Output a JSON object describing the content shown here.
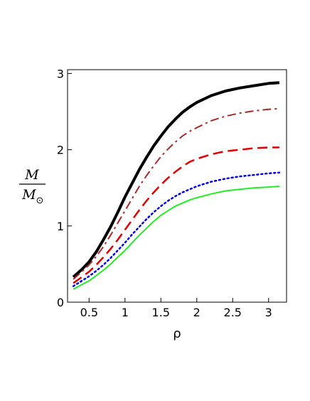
{
  "chart_data": {
    "type": "line",
    "xlabel": "ρ",
    "ylabel": {
      "numerator": "M",
      "denominator": "M",
      "subscript": "⊙"
    },
    "xlim": [
      0.2,
      3.25
    ],
    "ylim": [
      0,
      3.05
    ],
    "xticks": [
      0.5,
      1,
      1.5,
      2,
      2.5,
      3
    ],
    "xtick_labels": [
      "0.5",
      "1",
      "1.5",
      "2",
      "2.5",
      "3"
    ],
    "yticks": [
      0,
      1,
      2,
      3
    ],
    "ytick_labels": [
      "0",
      "1",
      "2",
      "3"
    ],
    "grid": false,
    "legend": "none",
    "series": [
      {
        "color": "#000000",
        "style": "solid",
        "width": 4,
        "x": [
          0.28,
          0.4,
          0.5,
          0.6,
          0.7,
          0.8,
          0.9,
          1.0,
          1.1,
          1.2,
          1.3,
          1.4,
          1.5,
          1.6,
          1.7,
          1.8,
          1.9,
          2.0,
          2.2,
          2.4,
          2.6,
          2.8,
          3.0,
          3.15
        ],
        "y": [
          0.33,
          0.43,
          0.53,
          0.66,
          0.82,
          0.99,
          1.18,
          1.38,
          1.56,
          1.74,
          1.9,
          2.05,
          2.18,
          2.3,
          2.4,
          2.49,
          2.56,
          2.62,
          2.71,
          2.77,
          2.81,
          2.84,
          2.87,
          2.88
        ]
      },
      {
        "color": "#a52a2a",
        "style": "dashdot",
        "width": 2,
        "x": [
          0.28,
          0.4,
          0.5,
          0.6,
          0.7,
          0.8,
          0.9,
          1.0,
          1.1,
          1.2,
          1.3,
          1.4,
          1.5,
          1.6,
          1.7,
          1.8,
          1.9,
          2.0,
          2.2,
          2.4,
          2.6,
          2.8,
          3.0,
          3.15
        ],
        "y": [
          0.3,
          0.4,
          0.49,
          0.6,
          0.73,
          0.88,
          1.04,
          1.2,
          1.36,
          1.52,
          1.66,
          1.79,
          1.91,
          2.01,
          2.1,
          2.18,
          2.24,
          2.29,
          2.38,
          2.44,
          2.48,
          2.51,
          2.53,
          2.54
        ]
      },
      {
        "color": "#e00000",
        "style": "dash",
        "width": 2.5,
        "x": [
          0.28,
          0.4,
          0.5,
          0.6,
          0.7,
          0.8,
          0.9,
          1.0,
          1.1,
          1.2,
          1.3,
          1.4,
          1.5,
          1.6,
          1.7,
          1.8,
          1.9,
          2.0,
          2.2,
          2.4,
          2.6,
          2.8,
          3.0,
          3.15
        ],
        "y": [
          0.25,
          0.33,
          0.4,
          0.49,
          0.59,
          0.7,
          0.82,
          0.95,
          1.08,
          1.21,
          1.33,
          1.44,
          1.54,
          1.63,
          1.71,
          1.78,
          1.84,
          1.88,
          1.94,
          1.98,
          2.0,
          2.02,
          2.03,
          2.03
        ]
      },
      {
        "color": "#0000ee",
        "style": "dot",
        "width": 2.5,
        "x": [
          0.28,
          0.4,
          0.5,
          0.6,
          0.7,
          0.8,
          0.9,
          1.0,
          1.1,
          1.2,
          1.3,
          1.4,
          1.5,
          1.6,
          1.7,
          1.8,
          1.9,
          2.0,
          2.2,
          2.4,
          2.6,
          2.8,
          3.0,
          3.15
        ],
        "y": [
          0.21,
          0.28,
          0.34,
          0.41,
          0.49,
          0.58,
          0.68,
          0.78,
          0.89,
          0.99,
          1.09,
          1.18,
          1.26,
          1.33,
          1.39,
          1.44,
          1.48,
          1.52,
          1.58,
          1.62,
          1.65,
          1.67,
          1.69,
          1.7
        ]
      },
      {
        "color": "#22ee22",
        "style": "solid",
        "width": 2,
        "x": [
          0.28,
          0.4,
          0.5,
          0.6,
          0.7,
          0.8,
          0.9,
          1.0,
          1.1,
          1.2,
          1.3,
          1.4,
          1.5,
          1.6,
          1.7,
          1.8,
          1.9,
          2.0,
          2.2,
          2.4,
          2.6,
          2.8,
          3.0,
          3.15
        ],
        "y": [
          0.17,
          0.23,
          0.28,
          0.35,
          0.42,
          0.5,
          0.59,
          0.68,
          0.78,
          0.88,
          0.97,
          1.06,
          1.14,
          1.2,
          1.26,
          1.3,
          1.34,
          1.37,
          1.42,
          1.46,
          1.48,
          1.5,
          1.51,
          1.52
        ]
      }
    ]
  }
}
